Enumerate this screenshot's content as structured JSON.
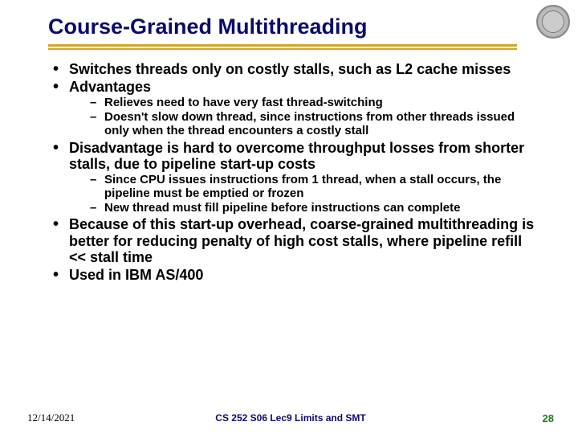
{
  "title": "Course-Grained Multithreading",
  "colors": {
    "title_color": "#0b0b6b",
    "rule_color": "#d6a528",
    "footer_title_color": "#0b0b6b",
    "footer_page_color": "#1a7f1a",
    "background": "#ffffff",
    "text_color": "#000000"
  },
  "bullets": {
    "b1": "Switches threads only on costly stalls, such as L2 cache misses",
    "b2": "Advantages",
    "b2_1": "Relieves need to have very fast thread-switching",
    "b2_2": "Doesn't slow down thread, since instructions from other threads issued only when the thread encounters a costly stall",
    "b3": "Disadvantage is hard to overcome throughput losses from shorter stalls, due to pipeline start-up costs",
    "b3_1": "Since CPU issues instructions from 1 thread, when a stall occurs, the pipeline must be emptied or frozen",
    "b3_2": "New thread must fill pipeline before instructions can complete",
    "b4": "Because of this start-up overhead, coarse-grained multithreading is better for reducing penalty of high cost stalls, where pipeline refill << stall time",
    "b5": "Used in IBM AS/400"
  },
  "footer": {
    "date": "12/14/2021",
    "center": "CS 252 S06 Lec9 Limits and SMT",
    "page": "28"
  }
}
